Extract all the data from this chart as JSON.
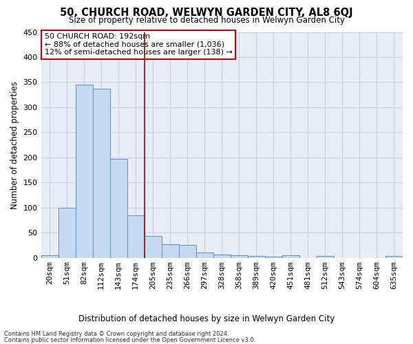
{
  "title": "50, CHURCH ROAD, WELWYN GARDEN CITY, AL8 6QJ",
  "subtitle": "Size of property relative to detached houses in Welwyn Garden City",
  "xlabel": "Distribution of detached houses by size in Welwyn Garden City",
  "ylabel": "Number of detached properties",
  "bar_color": "#c5d9f0",
  "bar_edge_color": "#5b8fc9",
  "bg_color": "#e8eef8",
  "categories": [
    "20sqm",
    "51sqm",
    "82sqm",
    "112sqm",
    "143sqm",
    "174sqm",
    "205sqm",
    "235sqm",
    "266sqm",
    "297sqm",
    "328sqm",
    "358sqm",
    "389sqm",
    "420sqm",
    "451sqm",
    "481sqm",
    "512sqm",
    "543sqm",
    "574sqm",
    "604sqm",
    "635sqm"
  ],
  "values": [
    5,
    100,
    345,
    337,
    197,
    84,
    44,
    27,
    25,
    10,
    7,
    5,
    3,
    2,
    5,
    0,
    4,
    0,
    0,
    0,
    3
  ],
  "ylim": [
    0,
    450
  ],
  "yticks": [
    0,
    50,
    100,
    150,
    200,
    250,
    300,
    350,
    400,
    450
  ],
  "vline_position": 5.5,
  "vline_color": "#aa0000",
  "annotation_text": "50 CHURCH ROAD: 192sqm\n← 88% of detached houses are smaller (1,036)\n12% of semi-detached houses are larger (138) →",
  "annotation_box_color": "#ffffff",
  "annotation_box_edge": "#cc0000",
  "footer_line1": "Contains HM Land Registry data © Crown copyright and database right 2024.",
  "footer_line2": "Contains public sector information licensed under the Open Government Licence v3.0.",
  "grid_color": "#c8d0e0"
}
